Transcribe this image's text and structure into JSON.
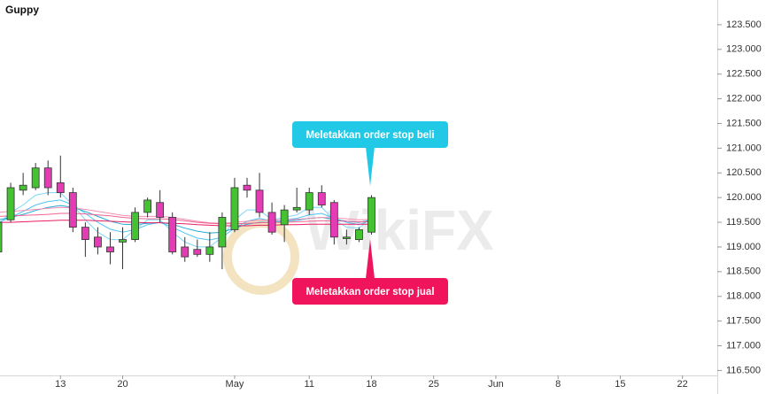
{
  "chart_data": {
    "type": "candlestick",
    "title": "Guppy",
    "x": [
      0,
      1,
      2,
      3,
      4,
      5,
      6,
      7,
      8,
      9,
      10,
      11,
      12,
      13,
      14,
      15,
      16,
      17,
      18,
      19,
      20,
      21,
      22,
      23,
      24,
      25,
      26,
      27,
      28,
      29,
      30
    ],
    "open": [
      118.9,
      119.55,
      120.15,
      120.2,
      120.6,
      120.3,
      120.1,
      119.4,
      119.2,
      119.0,
      119.1,
      119.15,
      119.7,
      119.9,
      119.6,
      119.0,
      118.95,
      118.85,
      119.0,
      119.35,
      120.25,
      120.15,
      119.7,
      119.45,
      119.75,
      119.75,
      120.1,
      119.9,
      119.17,
      119.15,
      119.3
    ],
    "high": [
      119.6,
      120.3,
      120.5,
      120.7,
      120.75,
      120.85,
      120.2,
      119.5,
      119.4,
      119.3,
      119.4,
      119.8,
      120.0,
      120.15,
      119.7,
      119.2,
      119.15,
      119.3,
      119.7,
      120.4,
      120.4,
      120.5,
      119.9,
      119.85,
      120.2,
      120.2,
      120.25,
      119.95,
      119.35,
      119.4,
      120.05
    ],
    "low": [
      118.85,
      119.5,
      120.05,
      120.15,
      120.05,
      120.0,
      119.3,
      118.8,
      118.85,
      118.65,
      118.55,
      119.1,
      119.6,
      119.5,
      118.85,
      118.7,
      118.8,
      118.7,
      118.55,
      119.3,
      120.0,
      119.6,
      119.25,
      119.1,
      119.7,
      119.65,
      119.8,
      119.05,
      119.05,
      119.1,
      119.25
    ],
    "close": [
      119.5,
      120.2,
      120.25,
      120.6,
      120.2,
      120.1,
      119.4,
      119.15,
      119.0,
      118.9,
      119.15,
      119.7,
      119.95,
      119.6,
      118.9,
      118.8,
      118.85,
      119.0,
      119.6,
      120.2,
      120.15,
      119.7,
      119.3,
      119.75,
      119.8,
      120.1,
      119.85,
      119.2,
      119.2,
      119.35,
      120.0
    ],
    "up_color": "#45c232",
    "down_color": "#e53bb4",
    "series": [
      {
        "color": "#7fd6f5",
        "values": [
          119.45,
          119.7,
          119.85,
          120.05,
          120.1,
          120.1,
          119.85,
          119.55,
          119.3,
          119.15,
          119.15,
          119.35,
          119.55,
          119.55,
          119.3,
          119.1,
          119.0,
          119.0,
          119.2,
          119.55,
          119.75,
          119.75,
          119.55,
          119.6,
          119.65,
          119.8,
          119.8,
          119.55,
          119.4,
          119.38,
          119.6
        ]
      },
      {
        "color": "#4fc3f7",
        "values": [
          119.5,
          119.6,
          119.72,
          119.85,
          119.92,
          119.95,
          119.85,
          119.68,
          119.5,
          119.36,
          119.3,
          119.35,
          119.45,
          119.5,
          119.4,
          119.28,
          119.18,
          119.14,
          119.2,
          119.38,
          119.52,
          119.58,
          119.52,
          119.55,
          119.58,
          119.65,
          119.68,
          119.58,
          119.5,
          119.45,
          119.55
        ]
      },
      {
        "color": "#26a9d8",
        "values": [
          119.55,
          119.6,
          119.66,
          119.74,
          119.8,
          119.84,
          119.8,
          119.72,
          119.62,
          119.52,
          119.46,
          119.45,
          119.48,
          119.5,
          119.46,
          119.38,
          119.32,
          119.28,
          119.3,
          119.38,
          119.46,
          119.5,
          119.5,
          119.52,
          119.54,
          119.58,
          119.6,
          119.56,
          119.52,
          119.5,
          119.54
        ]
      },
      {
        "color": "#f48fb1",
        "values": [
          119.7,
          119.72,
          119.74,
          119.76,
          119.78,
          119.8,
          119.79,
          119.76,
          119.72,
          119.68,
          119.64,
          119.62,
          119.62,
          119.62,
          119.6,
          119.56,
          119.52,
          119.49,
          119.48,
          119.5,
          119.52,
          119.54,
          119.54,
          119.55,
          119.56,
          119.58,
          119.6,
          119.59,
          119.57,
          119.55,
          119.56
        ]
      },
      {
        "color": "#f06292",
        "values": [
          119.62,
          119.63,
          119.64,
          119.65,
          119.66,
          119.68,
          119.68,
          119.67,
          119.65,
          119.63,
          119.6,
          119.58,
          119.57,
          119.57,
          119.56,
          119.53,
          119.5,
          119.48,
          119.47,
          119.47,
          119.48,
          119.49,
          119.5,
          119.5,
          119.51,
          119.52,
          119.53,
          119.53,
          119.52,
          119.51,
          119.51
        ]
      },
      {
        "color": "#e91e63",
        "values": [
          119.5,
          119.5,
          119.51,
          119.52,
          119.53,
          119.54,
          119.54,
          119.54,
          119.53,
          119.52,
          119.51,
          119.5,
          119.49,
          119.49,
          119.48,
          119.47,
          119.45,
          119.44,
          119.43,
          119.43,
          119.43,
          119.44,
          119.44,
          119.45,
          119.45,
          119.46,
          119.46,
          119.46,
          119.46,
          119.46,
          119.46
        ]
      }
    ],
    "xlim": [
      0.14,
      57.8
    ],
    "ylim": [
      116.4,
      124.0
    ],
    "xticks": [
      {
        "value": 5,
        "label": "13"
      },
      {
        "value": 10,
        "label": "20"
      },
      {
        "value": 19,
        "label": "May"
      },
      {
        "value": 25,
        "label": "11"
      },
      {
        "value": 30,
        "label": "18"
      },
      {
        "value": 35,
        "label": "25"
      },
      {
        "value": 40,
        "label": "Jun"
      },
      {
        "value": 45,
        "label": "8"
      },
      {
        "value": 50,
        "label": "15"
      },
      {
        "value": 55,
        "label": "22"
      }
    ],
    "yticks": [
      {
        "value": 116.5,
        "label": "116.500"
      },
      {
        "value": 117.0,
        "label": "117.000"
      },
      {
        "value": 117.5,
        "label": "117.500"
      },
      {
        "value": 118.0,
        "label": "118.000"
      },
      {
        "value": 118.5,
        "label": "118.500"
      },
      {
        "value": 119.0,
        "label": "119.000"
      },
      {
        "value": 119.5,
        "label": "119.500"
      },
      {
        "value": 120.0,
        "label": "120.000"
      },
      {
        "value": 120.5,
        "label": "120.500"
      },
      {
        "value": 121.0,
        "label": "121.000"
      },
      {
        "value": 121.5,
        "label": "121.500"
      },
      {
        "value": 122.0,
        "label": "122.000"
      },
      {
        "value": 122.5,
        "label": "122.500"
      },
      {
        "value": 123.0,
        "label": "123.000"
      },
      {
        "value": 123.5,
        "label": "123.500"
      }
    ],
    "annotations": [
      {
        "text": "Meletakkan order stop beli",
        "color": "#22c9e6"
      },
      {
        "text": "Meletakkan order stop jual",
        "color": "#f0145c"
      }
    ],
    "watermark": "WikiFX"
  }
}
